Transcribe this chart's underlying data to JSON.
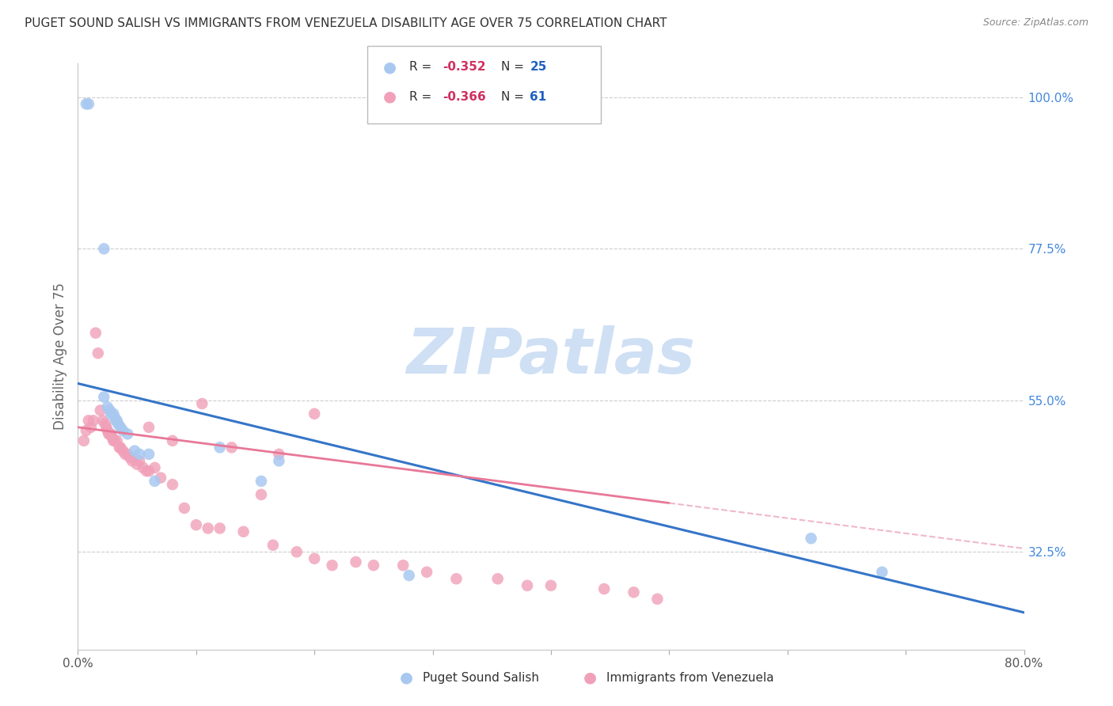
{
  "title": "PUGET SOUND SALISH VS IMMIGRANTS FROM VENEZUELA DISABILITY AGE OVER 75 CORRELATION CHART",
  "source": "Source: ZipAtlas.com",
  "ylabel": "Disability Age Over 75",
  "xlim": [
    0.0,
    0.8
  ],
  "ylim": [
    0.18,
    1.05
  ],
  "xticks": [
    0.0,
    0.1,
    0.2,
    0.3,
    0.4,
    0.5,
    0.6,
    0.7,
    0.8
  ],
  "yticks_right": [
    0.325,
    0.55,
    0.775,
    1.0
  ],
  "ytick_right_labels": [
    "32.5%",
    "55.0%",
    "77.5%",
    "100.0%"
  ],
  "grid_color": "#cccccc",
  "background_color": "#ffffff",
  "watermark_text": "ZIPatlas",
  "watermark_color": "#cfe0f5",
  "series1_label": "Puget Sound Salish",
  "series1_color": "#a8c8f0",
  "series1_R": -0.352,
  "series1_N": 25,
  "series1_x": [
    0.007,
    0.009,
    0.022,
    0.022,
    0.025,
    0.027,
    0.028,
    0.03,
    0.031,
    0.032,
    0.033,
    0.034,
    0.036,
    0.038,
    0.042,
    0.048,
    0.052,
    0.06,
    0.065,
    0.12,
    0.155,
    0.17,
    0.28,
    0.62,
    0.68
  ],
  "series1_y": [
    0.99,
    0.99,
    0.775,
    0.555,
    0.54,
    0.535,
    0.53,
    0.53,
    0.525,
    0.52,
    0.52,
    0.515,
    0.51,
    0.505,
    0.5,
    0.475,
    0.47,
    0.47,
    0.43,
    0.48,
    0.43,
    0.46,
    0.29,
    0.345,
    0.295
  ],
  "series2_label": "Immigrants from Venezuela",
  "series2_color": "#f0a0b8",
  "series2_R": -0.366,
  "series2_N": 61,
  "series2_x": [
    0.005,
    0.007,
    0.009,
    0.011,
    0.013,
    0.015,
    0.017,
    0.019,
    0.021,
    0.023,
    0.024,
    0.025,
    0.026,
    0.027,
    0.028,
    0.029,
    0.03,
    0.031,
    0.033,
    0.035,
    0.036,
    0.038,
    0.04,
    0.042,
    0.044,
    0.046,
    0.05,
    0.052,
    0.055,
    0.058,
    0.06,
    0.065,
    0.07,
    0.08,
    0.09,
    0.1,
    0.11,
    0.12,
    0.14,
    0.165,
    0.185,
    0.2,
    0.215,
    0.235,
    0.25,
    0.275,
    0.295,
    0.32,
    0.355,
    0.38,
    0.4,
    0.445,
    0.47,
    0.49,
    0.2,
    0.17,
    0.155,
    0.13,
    0.105,
    0.08,
    0.06
  ],
  "series2_y": [
    0.49,
    0.505,
    0.52,
    0.51,
    0.52,
    0.65,
    0.62,
    0.535,
    0.52,
    0.515,
    0.51,
    0.505,
    0.5,
    0.5,
    0.5,
    0.495,
    0.49,
    0.49,
    0.49,
    0.48,
    0.48,
    0.475,
    0.47,
    0.47,
    0.465,
    0.46,
    0.455,
    0.46,
    0.45,
    0.445,
    0.445,
    0.45,
    0.435,
    0.425,
    0.39,
    0.365,
    0.36,
    0.36,
    0.355,
    0.335,
    0.325,
    0.315,
    0.305,
    0.31,
    0.305,
    0.305,
    0.295,
    0.285,
    0.285,
    0.275,
    0.275,
    0.27,
    0.265,
    0.255,
    0.53,
    0.47,
    0.41,
    0.48,
    0.545,
    0.49,
    0.51
  ],
  "line1_color": "#3575c8",
  "line1_x_start": 0.0,
  "line1_x_end": 0.8,
  "line1_y_start": 0.575,
  "line1_y_end": 0.235,
  "line2_color": "#e87898",
  "line2_dash_color": "#f0b8c8",
  "line2_solid_x_end": 0.5,
  "line2_x_start": 0.0,
  "line2_x_end": 0.8,
  "line2_y_start": 0.51,
  "line2_y_end": 0.33,
  "legend_R_color": "#d03060",
  "legend_N_color": "#2060c0"
}
